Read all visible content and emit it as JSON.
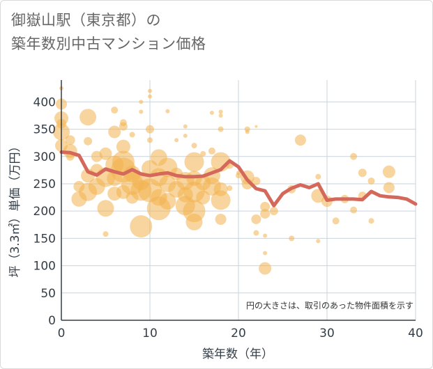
{
  "title_line1": "御嶽山駅（東京都）の",
  "title_line2": "築年数別中古マンション価格",
  "chart_data": {
    "type": "scatter",
    "title": "御嶽山駅（東京都）の 築年数別中古マンション価格",
    "xlabel": "築年数（年）",
    "ylabel": "坪（3.3㎡）単価（万円）",
    "xlim": [
      0,
      40
    ],
    "ylim": [
      0,
      440
    ],
    "xticks": [
      0,
      10,
      20,
      30,
      40
    ],
    "yticks": [
      0,
      50,
      100,
      150,
      200,
      250,
      300,
      350,
      400
    ],
    "grid": true,
    "annotation": "円の大きさは、取引のあった物件面積を示す",
    "colors": {
      "bubble": "#f2b24f",
      "line": "#d4685a",
      "grid": "#c9d3dc",
      "axis": "#333d47"
    },
    "average_line": {
      "x": [
        0,
        1,
        2,
        3,
        4,
        5,
        6,
        7,
        8,
        9,
        10,
        11,
        12,
        13,
        14,
        15,
        16,
        17,
        18,
        19,
        20,
        21,
        22,
        23,
        24,
        25,
        26,
        27,
        28,
        29,
        30,
        31,
        32,
        33,
        34,
        35,
        36,
        37,
        38,
        39,
        40
      ],
      "y": [
        308,
        307,
        302,
        272,
        266,
        277,
        272,
        268,
        276,
        268,
        265,
        268,
        270,
        265,
        263,
        263,
        264,
        270,
        276,
        292,
        281,
        257,
        241,
        237,
        210,
        232,
        242,
        248,
        243,
        250,
        220,
        222,
        222,
        222,
        221,
        236,
        228,
        226,
        225,
        222,
        213
      ]
    },
    "bubbles": [
      {
        "x": 0,
        "y": 425,
        "r": 3
      },
      {
        "x": 0,
        "y": 396,
        "r": 8
      },
      {
        "x": 0,
        "y": 370,
        "r": 10
      },
      {
        "x": 0,
        "y": 360,
        "r": 7
      },
      {
        "x": 0,
        "y": 345,
        "r": 12
      },
      {
        "x": 0,
        "y": 320,
        "r": 9
      },
      {
        "x": 1,
        "y": 330,
        "r": 7
      },
      {
        "x": 1,
        "y": 310,
        "r": 10
      },
      {
        "x": 1,
        "y": 300,
        "r": 6
      },
      {
        "x": 2,
        "y": 222,
        "r": 11
      },
      {
        "x": 2,
        "y": 245,
        "r": 8
      },
      {
        "x": 3,
        "y": 372,
        "r": 12
      },
      {
        "x": 3,
        "y": 328,
        "r": 6
      },
      {
        "x": 3,
        "y": 265,
        "r": 10
      },
      {
        "x": 3,
        "y": 235,
        "r": 13
      },
      {
        "x": 4,
        "y": 275,
        "r": 9
      },
      {
        "x": 4,
        "y": 245,
        "r": 12
      },
      {
        "x": 4,
        "y": 300,
        "r": 8
      },
      {
        "x": 5,
        "y": 205,
        "r": 12
      },
      {
        "x": 5,
        "y": 262,
        "r": 14
      },
      {
        "x": 5,
        "y": 158,
        "r": 4
      },
      {
        "x": 5,
        "y": 305,
        "r": 9
      },
      {
        "x": 6,
        "y": 385,
        "r": 5
      },
      {
        "x": 6,
        "y": 345,
        "r": 9
      },
      {
        "x": 6,
        "y": 285,
        "r": 13
      },
      {
        "x": 6,
        "y": 260,
        "r": 11
      },
      {
        "x": 6,
        "y": 232,
        "r": 10
      },
      {
        "x": 7,
        "y": 362,
        "r": 5
      },
      {
        "x": 7,
        "y": 355,
        "r": 6
      },
      {
        "x": 7,
        "y": 318,
        "r": 10
      },
      {
        "x": 7,
        "y": 290,
        "r": 16
      },
      {
        "x": 7,
        "y": 275,
        "r": 18
      },
      {
        "x": 7,
        "y": 235,
        "r": 10
      },
      {
        "x": 8,
        "y": 340,
        "r": 4
      },
      {
        "x": 8,
        "y": 268,
        "r": 12
      },
      {
        "x": 8,
        "y": 250,
        "r": 16
      },
      {
        "x": 8,
        "y": 225,
        "r": 9
      },
      {
        "x": 9,
        "y": 400,
        "r": 3
      },
      {
        "x": 9,
        "y": 382,
        "r": 3
      },
      {
        "x": 9,
        "y": 172,
        "r": 16
      },
      {
        "x": 9,
        "y": 255,
        "r": 13
      },
      {
        "x": 9,
        "y": 238,
        "r": 15
      },
      {
        "x": 10,
        "y": 420,
        "r": 3
      },
      {
        "x": 10,
        "y": 410,
        "r": 3
      },
      {
        "x": 10,
        "y": 350,
        "r": 6
      },
      {
        "x": 10,
        "y": 330,
        "r": 4
      },
      {
        "x": 10,
        "y": 278,
        "r": 12
      },
      {
        "x": 10,
        "y": 238,
        "r": 17
      },
      {
        "x": 11,
        "y": 298,
        "r": 12
      },
      {
        "x": 11,
        "y": 262,
        "r": 13
      },
      {
        "x": 11,
        "y": 225,
        "r": 12
      },
      {
        "x": 11,
        "y": 205,
        "r": 17
      },
      {
        "x": 12,
        "y": 383,
        "r": 3
      },
      {
        "x": 12,
        "y": 250,
        "r": 12
      },
      {
        "x": 12,
        "y": 218,
        "r": 12
      },
      {
        "x": 12,
        "y": 280,
        "r": 14
      },
      {
        "x": 13,
        "y": 330,
        "r": 3
      },
      {
        "x": 13,
        "y": 268,
        "r": 9
      },
      {
        "x": 13,
        "y": 240,
        "r": 12
      },
      {
        "x": 14,
        "y": 355,
        "r": 3
      },
      {
        "x": 14,
        "y": 338,
        "r": 3
      },
      {
        "x": 14,
        "y": 255,
        "r": 13
      },
      {
        "x": 14,
        "y": 230,
        "r": 11
      },
      {
        "x": 14,
        "y": 210,
        "r": 14
      },
      {
        "x": 15,
        "y": 320,
        "r": 4
      },
      {
        "x": 15,
        "y": 290,
        "r": 14
      },
      {
        "x": 15,
        "y": 260,
        "r": 11
      },
      {
        "x": 15,
        "y": 235,
        "r": 15
      },
      {
        "x": 15,
        "y": 200,
        "r": 16
      },
      {
        "x": 15,
        "y": 180,
        "r": 12
      },
      {
        "x": 16,
        "y": 305,
        "r": 4
      },
      {
        "x": 16,
        "y": 252,
        "r": 11
      },
      {
        "x": 16,
        "y": 225,
        "r": 10
      },
      {
        "x": 17,
        "y": 380,
        "r": 3
      },
      {
        "x": 17,
        "y": 310,
        "r": 5
      },
      {
        "x": 17,
        "y": 265,
        "r": 12
      },
      {
        "x": 17,
        "y": 245,
        "r": 13
      },
      {
        "x": 18,
        "y": 382,
        "r": 3
      },
      {
        "x": 18,
        "y": 375,
        "r": 3
      },
      {
        "x": 18,
        "y": 350,
        "r": 4
      },
      {
        "x": 18,
        "y": 290,
        "r": 14
      },
      {
        "x": 18,
        "y": 240,
        "r": 10
      },
      {
        "x": 18,
        "y": 220,
        "r": 14
      },
      {
        "x": 18,
        "y": 185,
        "r": 8
      },
      {
        "x": 19,
        "y": 285,
        "r": 6
      },
      {
        "x": 19,
        "y": 242,
        "r": 4
      },
      {
        "x": 20,
        "y": 265,
        "r": 4
      },
      {
        "x": 20,
        "y": 270,
        "r": 3
      },
      {
        "x": 21,
        "y": 350,
        "r": 4
      },
      {
        "x": 21,
        "y": 345,
        "r": 3
      },
      {
        "x": 21,
        "y": 262,
        "r": 10
      },
      {
        "x": 21,
        "y": 250,
        "r": 8
      },
      {
        "x": 22,
        "y": 355,
        "r": 2
      },
      {
        "x": 22,
        "y": 255,
        "r": 6
      },
      {
        "x": 22,
        "y": 185,
        "r": 7
      },
      {
        "x": 22,
        "y": 160,
        "r": 4
      },
      {
        "x": 23,
        "y": 208,
        "r": 7
      },
      {
        "x": 23,
        "y": 195,
        "r": 7
      },
      {
        "x": 23,
        "y": 155,
        "r": 3
      },
      {
        "x": 23,
        "y": 123,
        "r": 3
      },
      {
        "x": 23,
        "y": 95,
        "r": 9
      },
      {
        "x": 24,
        "y": 200,
        "r": 6
      },
      {
        "x": 26,
        "y": 240,
        "r": 6
      },
      {
        "x": 26,
        "y": 150,
        "r": 4
      },
      {
        "x": 27,
        "y": 330,
        "r": 8
      },
      {
        "x": 29,
        "y": 263,
        "r": 4
      },
      {
        "x": 29,
        "y": 228,
        "r": 10
      },
      {
        "x": 29,
        "y": 145,
        "r": 3
      },
      {
        "x": 30,
        "y": 218,
        "r": 8
      },
      {
        "x": 31,
        "y": 182,
        "r": 5
      },
      {
        "x": 32,
        "y": 222,
        "r": 6
      },
      {
        "x": 33,
        "y": 300,
        "r": 5
      },
      {
        "x": 33,
        "y": 202,
        "r": 5
      },
      {
        "x": 34,
        "y": 270,
        "r": 6
      },
      {
        "x": 34,
        "y": 228,
        "r": 6
      },
      {
        "x": 35,
        "y": 255,
        "r": 5
      },
      {
        "x": 35,
        "y": 182,
        "r": 4
      },
      {
        "x": 37,
        "y": 272,
        "r": 9
      },
      {
        "x": 37,
        "y": 243,
        "r": 8
      }
    ]
  }
}
